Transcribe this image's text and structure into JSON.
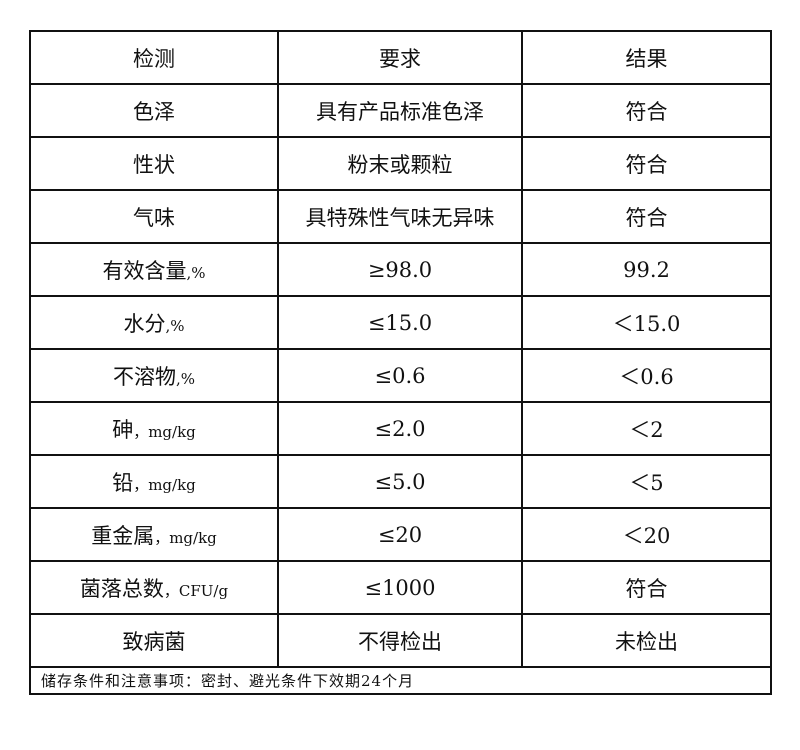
{
  "table": {
    "headers": [
      "检测",
      "要求",
      "结果"
    ],
    "rows": [
      {
        "item": "色泽",
        "unit": "",
        "requirement": "具有产品标准色泽",
        "result": "符合"
      },
      {
        "item": "性状",
        "unit": "",
        "requirement": "粉末或颗粒",
        "result": "符合"
      },
      {
        "item": "气味",
        "unit": "",
        "requirement": "具特殊性气味无异味",
        "result": "符合"
      },
      {
        "item": "有效含量",
        "unit": ",%",
        "requirement": "≥98.0",
        "result": "99.2"
      },
      {
        "item": "水分",
        "unit": ",%",
        "requirement": "≤15.0",
        "result": "＜15.0"
      },
      {
        "item": "不溶物",
        "unit": ",%",
        "requirement": "≤0.6",
        "result": "＜0.6"
      },
      {
        "item": "砷",
        "unit": "，mg/kg",
        "requirement": "≤2.0",
        "result": "＜2"
      },
      {
        "item": "铅",
        "unit": "，mg/kg",
        "requirement": "≤5.0",
        "result": "＜5"
      },
      {
        "item": "重金属",
        "unit": "，mg/kg",
        "requirement": "≤20",
        "result": "＜20"
      },
      {
        "item": "菌落总数",
        "unit": "，CFU/g",
        "requirement": "≤1000",
        "result": "符合"
      },
      {
        "item": "致病菌",
        "unit": "",
        "requirement": "不得检出",
        "result": "未检出"
      }
    ],
    "footer": "储存条件和注意事项：密封、避光条件下效期24个月"
  }
}
